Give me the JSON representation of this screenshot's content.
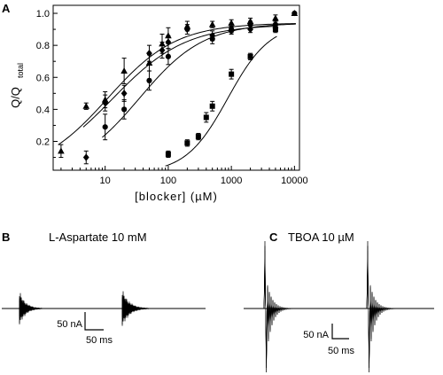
{
  "panels": {
    "a": {
      "letter": "A"
    },
    "b": {
      "letter": "B",
      "title": "L-Aspartate 10 mM",
      "scale_y": "50 nA",
      "scale_x": "50 ms"
    },
    "c": {
      "letter": "C",
      "title": "TBOA 10 µM",
      "scale_y": "50 nA",
      "scale_x": "50 ms"
    }
  },
  "chart_data": {
    "type": "scatter",
    "title": "",
    "xlabel": "[blocker] (µM)",
    "ylabel_main": "Q/Q",
    "ylabel_sub": "total",
    "x_scale": "log",
    "xlim": [
      1.5,
      12000
    ],
    "ylim": [
      0.02,
      1.05
    ],
    "x_ticks": [
      10,
      100,
      1000,
      10000
    ],
    "x_tick_labels": [
      "10",
      "100",
      "1000",
      "10000"
    ],
    "y_ticks": [
      0.2,
      0.4,
      0.6,
      0.8,
      1.0
    ],
    "y_tick_labels": [
      "0.2",
      "0.4",
      "0.6",
      "0.8",
      "1.0"
    ],
    "grid": false,
    "series": [
      {
        "marker": "triangle",
        "x": [
          2,
          5,
          10,
          20,
          50,
          80,
          100,
          200,
          500,
          1000,
          2000,
          5000,
          10000
        ],
        "y": [
          0.14,
          0.42,
          0.46,
          0.64,
          0.69,
          0.81,
          0.86,
          0.92,
          0.93,
          0.94,
          0.95,
          0.97,
          1.0
        ],
        "err": [
          0.04,
          0.02,
          0.05,
          0.08,
          0.05,
          0.06,
          0.05,
          0.03,
          0.02,
          0.02,
          0.02,
          0.02,
          0.0
        ],
        "fit": {
          "ic50": 11,
          "hill": 0.8,
          "top": 0.94
        }
      },
      {
        "marker": "diamond",
        "x": [
          5,
          10,
          20,
          50,
          80,
          100,
          200,
          500,
          1000,
          2000,
          5000
        ],
        "y": [
          0.1,
          0.44,
          0.5,
          0.75,
          0.77,
          0.82,
          0.9,
          0.86,
          0.89,
          0.9,
          0.91
        ],
        "err": [
          0.04,
          0.05,
          0.05,
          0.05,
          0.05,
          0.04,
          0.03,
          0.03,
          0.02,
          0.02,
          0.02
        ],
        "fit": {
          "ic50": 13,
          "hill": 0.75,
          "top": 0.93
        }
      },
      {
        "marker": "circle",
        "x": [
          10,
          20,
          50,
          100,
          500,
          1000,
          2000,
          5000,
          10000
        ],
        "y": [
          0.29,
          0.4,
          0.58,
          0.73,
          0.84,
          0.9,
          0.93,
          0.93,
          1.0
        ],
        "err": [
          0.08,
          0.06,
          0.06,
          0.05,
          0.03,
          0.02,
          0.02,
          0.02,
          0.0
        ],
        "fit": {
          "ic50": 35,
          "hill": 0.85,
          "top": 0.94
        }
      },
      {
        "marker": "square",
        "x": [
          100,
          200,
          300,
          400,
          500,
          1000,
          2000,
          5000
        ],
        "y": [
          0.12,
          0.19,
          0.23,
          0.35,
          0.42,
          0.62,
          0.73,
          0.9
        ],
        "err": [
          0.02,
          0.02,
          0.02,
          0.03,
          0.03,
          0.03,
          0.02,
          0.02
        ],
        "fit": {
          "ic50": 880,
          "hill": 1.3,
          "top": 0.94
        }
      }
    ]
  }
}
